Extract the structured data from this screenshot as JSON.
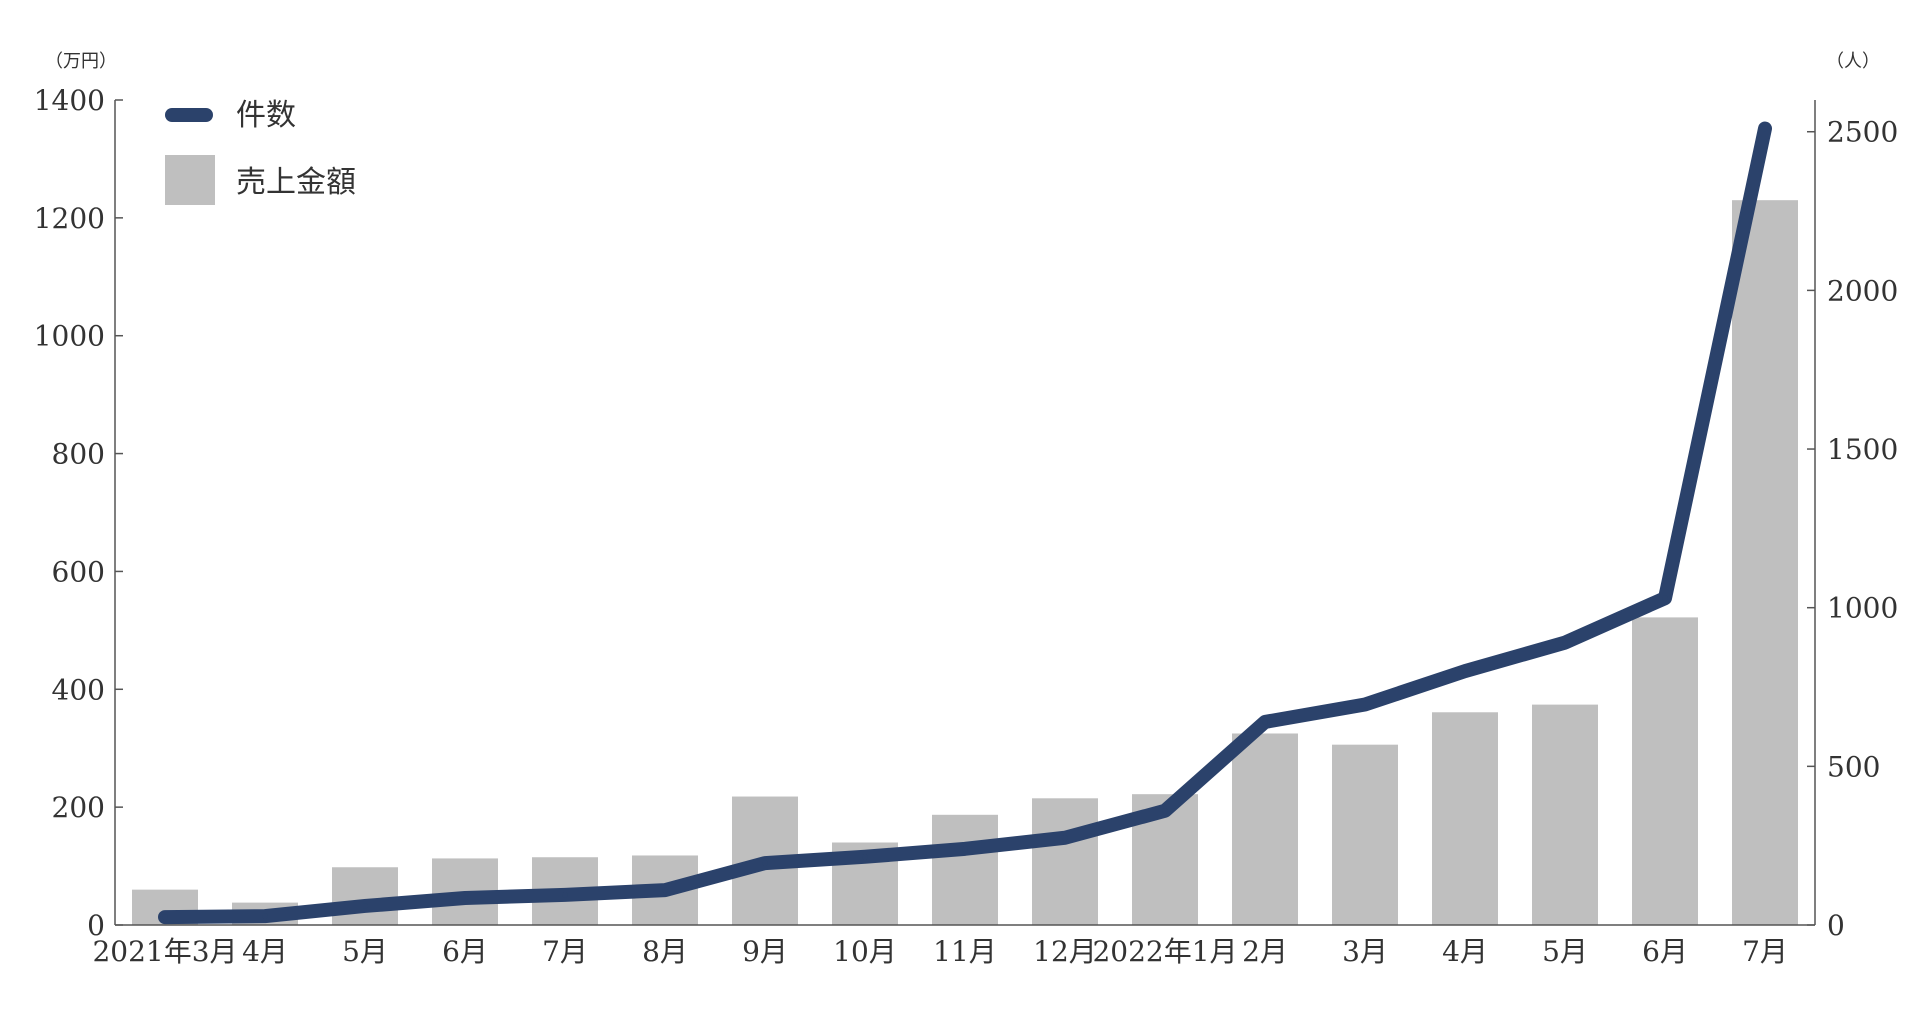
{
  "chart_data": {
    "type": "bar",
    "categories": [
      "2021年3月",
      "4月",
      "5月",
      "6月",
      "7月",
      "8月",
      "9月",
      "10月",
      "11月",
      "12月",
      "2022年1月",
      "2月",
      "3月",
      "4月",
      "5月",
      "6月",
      "7月"
    ],
    "series": [
      {
        "name": "売上金額",
        "type": "bar",
        "axis": "left",
        "color": "#bfbfbf",
        "values": [
          60,
          38,
          98,
          113,
          115,
          118,
          218,
          140,
          187,
          215,
          222,
          325,
          306,
          361,
          374,
          522,
          1230
        ]
      },
      {
        "name": "件数",
        "type": "line",
        "axis": "right",
        "color": "#2b426b",
        "values": [
          25,
          28,
          60,
          85,
          95,
          110,
          195,
          215,
          240,
          275,
          360,
          640,
          695,
          800,
          890,
          1030,
          2510
        ]
      }
    ],
    "left_axis": {
      "unit": "（万円）",
      "range": [
        0,
        1400
      ],
      "ticks": [
        "0",
        "200",
        "400",
        "600",
        "800",
        "1000",
        "1200",
        "1400"
      ]
    },
    "right_axis": {
      "unit": "（人）",
      "range": [
        0,
        2600
      ],
      "ticks": [
        "0",
        "500",
        "1000",
        "1500",
        "2000",
        "2500"
      ]
    },
    "legend": {
      "position": "top-left",
      "items": [
        {
          "label": "件数",
          "kind": "line",
          "color": "#2b426b"
        },
        {
          "label": "売上金額",
          "kind": "bar",
          "color": "#bfbfbf"
        }
      ]
    },
    "grid": false,
    "title": ""
  }
}
